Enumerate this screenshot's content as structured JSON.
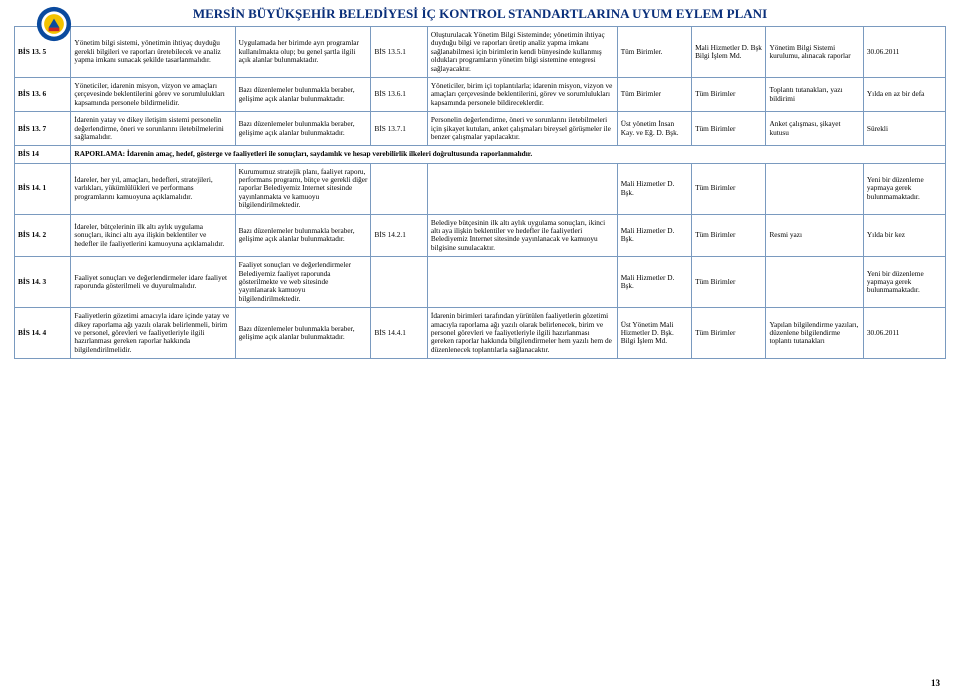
{
  "header": {
    "title": "MERSİN BÜYÜKŞEHİR BELEDİYESİ İÇ KONTROL STANDARTLARINA UYUM EYLEM PLANI",
    "logo_colors": {
      "outer": "#0a4a9e",
      "inner": "#f2c200",
      "red": "#c22"
    }
  },
  "section_code": "BİS 14",
  "section_text": "RAPORLAMA: İdarenin amaç, hedef, gösterge ve faaliyetleri ile sonuçları, saydamlık ve hesap verebilirlik ilkeleri doğrultusunda raporlanmalıdır.",
  "rows": [
    {
      "code": "BİS 13. 5",
      "c1": "Yönetim bilgi sistemi, yönetimin ihtiyaç duyduğu gerekli bilgileri ve raporları üretebilecek ve analiz yapma imkanı sunacak şekilde tasarlanmalıdır.",
      "c2": "Uygulamada her birimde ayrı programlar kullanılmakta olup; bu genel şartla ilgili açık alanlar bulunmaktadır.",
      "c3": "BİS 13.5.1",
      "c4": "Oluşturulacak Yönetim Bilgi Sisteminde; yönetimin ihtiyaç duyduğu bilgi ve raporları üretip analiz yapma imkanı sağlanabilmesi için birimlerin kendi bünyesinde kullanmış oldukları programların yönetim bilgi sistemine entegresi sağlayacaktır.",
      "c5": "Tüm Birimler.",
      "c6": "Mali Hizmetler D. Bşk Bilgi İşlem Md.",
      "c7": "Yönetim Bilgi Sistemi kurulumu, alınacak raporlar",
      "c8": "30.06.2011"
    },
    {
      "code": "BİS 13. 6",
      "c1": "Yöneticiler, idarenin misyon, vizyon ve amaçları çerçevesinde beklentilerini görev ve sorumlulukları kapsamında personele bildirmelidir.",
      "c2": "Bazı düzenlemeler bulunmakla beraber, gelişime açık alanlar bulunmaktadır.",
      "c3": "BİS 13.6.1",
      "c4": "Yöneticiler, birim içi toplantılarla; idarenin misyon, vizyon ve amaçları çerçevesinde beklentilerini, görev ve sorumlulukları kapsamında personele bildireceklerdir.",
      "c5": "Tüm Birimler",
      "c6": "Tüm Birimler",
      "c7": "Toplantı tutanakları, yazı bildirimi",
      "c8": "Yılda en az bir defa"
    },
    {
      "code": "BİS 13. 7",
      "c1": "İdarenin yatay ve dikey iletişim sistemi personelin değerlendirme, öneri ve sorunlarını iletebilmelerini sağlamalıdır.",
      "c2": "Bazı düzenlemeler bulunmakla beraber, gelişime açık alanlar bulunmaktadır.",
      "c3": "BİS 13.7.1",
      "c4": "Personelin değerlendirme, öneri ve sorunlarını iletebilmeleri için şikayet kutuları, anket çalışmaları bireysel görüşmeler ile benzer çalışmalar yapılacaktır.",
      "c5": "Üst yönetim İnsan Kay. ve Eğ. D. Bşk.",
      "c6": "Tüm Birimler",
      "c7": "Anket çalışması, şikayet kutusu",
      "c8": "Sürekli"
    },
    {
      "code": "BİS 14. 1",
      "c1": "İdareler, her yıl, amaçları, hedefleri, stratejileri, varlıkları, yükümlülükleri ve performans programlarını kamuoyuna açıklamalıdır.",
      "c2": "Kurumumuz stratejik planı, faaliyet raporu, performans programı, bütçe ve gerekli diğer raporlar Belediyemiz Internet sitesinde yayınlanmakta ve kamuoyu bilgilendirilmektedir.",
      "c3": "",
      "c4": "",
      "c5": "Mali Hizmetler D. Bşk.",
      "c6": "Tüm Birimler",
      "c7": "",
      "c8": "Yeni bir düzenleme yapmaya gerek bulunmamaktadır."
    },
    {
      "code": "BİS 14. 2",
      "c1": "İdareler, bütçelerinin ilk altı aylık uygulama sonuçları, ikinci altı aya ilişkin beklentiler ve hedefler ile faaliyetlerini kamuoyuna açıklamalıdır.",
      "c2": "Bazı düzenlemeler bulunmakla beraber, gelişime açık alanlar bulunmaktadır.",
      "c3": "BİS 14.2.1",
      "c4": "Belediye bütçesinin ilk altı aylık uygulama sonuçları, ikinci altı aya ilişkin beklentiler ve hedefler ile faaliyetleri Belediyemiz Internet sitesinde yayınlanacak ve kamuoyu bilgisine sunulacaktır.",
      "c5": "Mali Hizmetler D. Bşk.",
      "c6": "Tüm Birimler",
      "c7": "Resmi yazı",
      "c8": "Yılda bir kez"
    },
    {
      "code": "BİS 14. 3",
      "c1": "Faaliyet sonuçları ve değerlendirmeler idare faaliyet raporunda gösterilmeli ve duyurulmalıdır.",
      "c2": "Faaliyet sonuçları ve değerlendirmeler Belediyemiz faaliyet raporunda gösterilmekte ve web sitesinde yayınlanarak kamuoyu bilgilendirilmektedir.",
      "c3": "",
      "c4": "",
      "c5": "Mali Hizmetler D. Bşk.",
      "c6": "Tüm Birimler",
      "c7": "",
      "c8": "Yeni bir düzenleme yapmaya gerek bulunmamaktadır."
    },
    {
      "code": "BİS 14. 4",
      "c1": "Faaliyetlerin gözetimi amacıyla idare içinde yatay ve dikey raporlama ağı yazılı olarak belirlenmeli, birim ve personel, görevleri ve faaliyetleriyle ilgili hazırlanması gereken raporlar hakkında bilgilendirilmelidir.",
      "c2": "Bazı düzenlemeler bulunmakla beraber, gelişime açık alanlar bulunmaktadır.",
      "c3": "BİS 14.4.1",
      "c4": "İdarenin birimleri tarafından yürütülen faaliyetlerin gözetimi amacıyla raporlama ağı yazılı olarak belirlenecek, birim ve personel görevleri ve faaliyetleriyle ilgili hazırlanması gereken raporlar hakkında bilgilendirmeler hem yazılı hem de düzenlenecek toplantılarla sağlanacaktır.",
      "c5": "Üst Yönetim Mali Hizmetler D. Bşk. Bilgi İşlem Md.",
      "c6": "Tüm Birimler",
      "c7": "Yapılan bilgilendirme yazıları, düzenlene bilgilendirme toplantı tutanakları",
      "c8": "30.06.2011"
    }
  ],
  "page_number": "13"
}
